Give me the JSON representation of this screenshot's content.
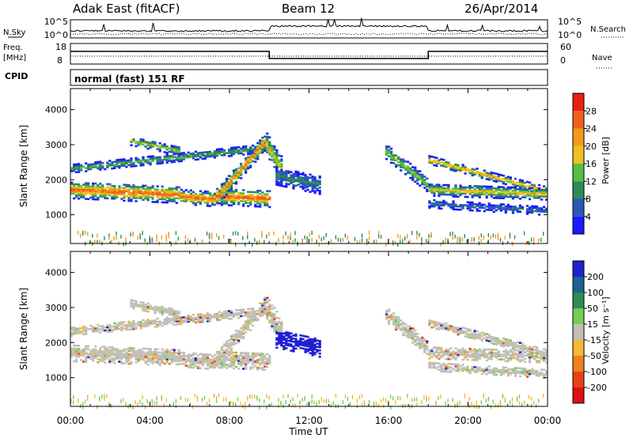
{
  "header": {
    "title": "Adak East (fitACF)",
    "beam": "Beam 12",
    "date": "26/Apr/2014"
  },
  "summary_panels": {
    "nsky_label": "N.Sky",
    "nsky_ticks": [
      "10^5",
      "10^0"
    ],
    "nsearch_label": "N.Search",
    "nsearch_ticks": [
      "10^5",
      "10^0"
    ],
    "freq_label": "Freq.",
    "freq_unit": "[MHz]",
    "freq_ticks": [
      "18",
      "8"
    ],
    "nave_label": "Nave",
    "nave_ticks": [
      "60",
      "0"
    ],
    "cpid_label": "CPID",
    "cpid_text": "normal (fast) 151 RF"
  },
  "chart_data": [
    {
      "type": "heatmap",
      "name": "power",
      "ylabel": "Slant Range [km]",
      "xlabel": "Time UT",
      "x_ticks": [
        "00:00",
        "04:00",
        "08:00",
        "12:00",
        "16:00",
        "20:00",
        "00:00"
      ],
      "x_range_hours": [
        0,
        24
      ],
      "y_ticks": [
        "1000",
        "2000",
        "3000",
        "4000"
      ],
      "y_range_km": [
        180,
        4600
      ],
      "colorbar_label": "Power [dB]",
      "colorbar_ticks": [
        "4",
        "8",
        "12",
        "16",
        "20",
        "24",
        "28"
      ],
      "colorbar_range": [
        0,
        32
      ],
      "colorbar_colors": [
        "#1a1aff",
        "#2b56b8",
        "#2e8b57",
        "#55c044",
        "#f0c020",
        "#f39a1c",
        "#f06018",
        "#e82014"
      ]
    },
    {
      "type": "heatmap",
      "name": "velocity",
      "ylabel": "Slant Range [km]",
      "xlabel": "Time UT",
      "x_ticks": [
        "00:00",
        "04:00",
        "08:00",
        "12:00",
        "16:00",
        "20:00",
        "00:00"
      ],
      "x_range_hours": [
        0,
        24
      ],
      "y_ticks": [
        "1000",
        "2000",
        "3000",
        "4000"
      ],
      "y_range_km": [
        180,
        4600
      ],
      "colorbar_label": "Velocity [m s⁻¹]",
      "colorbar_ticks": [
        "200",
        "100",
        "50",
        "15",
        "-15",
        "-50",
        "-100",
        "-200"
      ],
      "colorbar_colors": [
        "#2020d0",
        "#206090",
        "#2e8b57",
        "#77cc55",
        "#c0c0b8",
        "#f5b830",
        "#f08020",
        "#e84018",
        "#e01010"
      ]
    }
  ]
}
